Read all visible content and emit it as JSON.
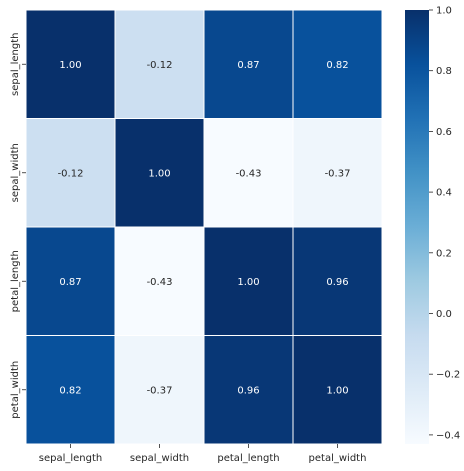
{
  "chart_data": {
    "type": "heatmap",
    "row_labels": [
      "sepal_length",
      "sepal_width",
      "petal_length",
      "petal_width"
    ],
    "col_labels": [
      "sepal_length",
      "sepal_width",
      "petal_length",
      "petal_width"
    ],
    "values": [
      [
        1.0,
        -0.12,
        0.87,
        0.82
      ],
      [
        -0.12,
        1.0,
        -0.43,
        -0.37
      ],
      [
        0.87,
        -0.43,
        1.0,
        0.96
      ],
      [
        0.82,
        -0.37,
        0.96,
        1.0
      ]
    ],
    "value_labels": [
      [
        "1.00",
        "-0.12",
        "0.87",
        "0.82"
      ],
      [
        "-0.12",
        "1.00",
        "-0.43",
        "-0.37"
      ],
      [
        "0.87",
        "-0.43",
        "1.00",
        "0.96"
      ],
      [
        "0.82",
        "-0.37",
        "0.96",
        "1.00"
      ]
    ],
    "colorbar": {
      "vmin": -0.43,
      "vmax": 1.0,
      "ticks": [
        1.0,
        0.8,
        0.6,
        0.4,
        0.2,
        0.0,
        -0.2,
        -0.4
      ],
      "tick_labels": [
        "1.0",
        "0.8",
        "0.6",
        "0.4",
        "0.2",
        "0.0",
        "−0.2",
        "−0.4"
      ]
    },
    "colormap": "Blues",
    "colormap_stops": [
      "#f7fbff",
      "#deebf7",
      "#c6dbef",
      "#9ecae1",
      "#6baed6",
      "#4292c6",
      "#2171b5",
      "#08519c",
      "#08306b"
    ],
    "light_text_color": "#ffffff",
    "dark_text_color": "#262626",
    "gridline_color": "#ffffff",
    "title": "",
    "xlabel": "",
    "ylabel": ""
  }
}
